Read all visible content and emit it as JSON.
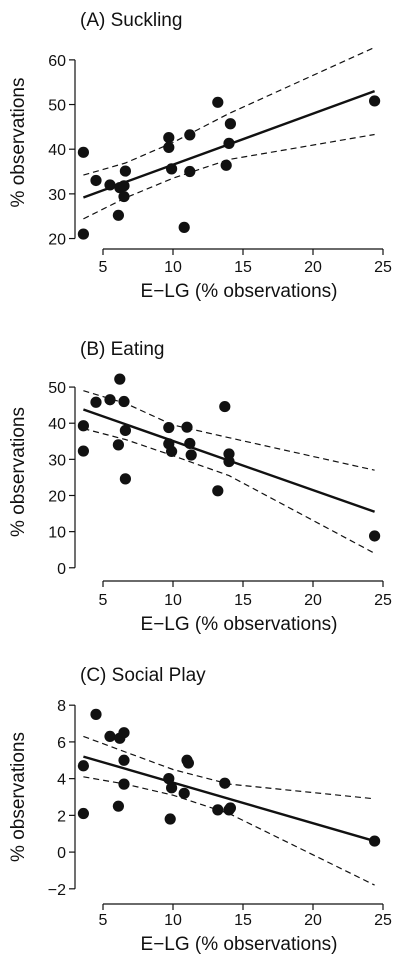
{
  "chart_data": [
    {
      "type": "scatter",
      "title": "(A) Suckling",
      "xlabel": "E−LG (% observations)",
      "ylabel": "% observations",
      "xlim": [
        3,
        25
      ],
      "ylim": [
        19,
        64
      ],
      "xticks": [
        5,
        10,
        15,
        20,
        25
      ],
      "yticks": [
        20,
        30,
        40,
        50,
        60
      ],
      "points": [
        {
          "x": 3.6,
          "y": 39.3
        },
        {
          "x": 3.6,
          "y": 21.0
        },
        {
          "x": 4.5,
          "y": 33.0
        },
        {
          "x": 5.5,
          "y": 32.0
        },
        {
          "x": 6.1,
          "y": 25.2
        },
        {
          "x": 6.2,
          "y": 31.4
        },
        {
          "x": 6.5,
          "y": 29.4
        },
        {
          "x": 6.5,
          "y": 31.8
        },
        {
          "x": 6.6,
          "y": 35.1
        },
        {
          "x": 9.7,
          "y": 42.6
        },
        {
          "x": 9.7,
          "y": 40.4
        },
        {
          "x": 9.9,
          "y": 35.6
        },
        {
          "x": 10.8,
          "y": 22.5
        },
        {
          "x": 11.2,
          "y": 43.2
        },
        {
          "x": 11.2,
          "y": 35.0
        },
        {
          "x": 13.2,
          "y": 50.5
        },
        {
          "x": 13.8,
          "y": 36.4
        },
        {
          "x": 14.0,
          "y": 41.3
        },
        {
          "x": 14.1,
          "y": 45.7
        },
        {
          "x": 24.4,
          "y": 50.8
        }
      ],
      "fit": {
        "x": [
          3.6,
          24.4
        ],
        "y": [
          29.2,
          53.0
        ]
      },
      "ci_upper": {
        "x": [
          3.6,
          6.6,
          10.0,
          14.0,
          24.4
        ],
        "y": [
          34.2,
          36.9,
          41.5,
          48.0,
          62.8
        ]
      },
      "ci_lower": {
        "x": [
          3.6,
          6.6,
          10.0,
          14.0,
          24.4
        ],
        "y": [
          24.4,
          29.1,
          33.5,
          37.7,
          43.3
        ]
      }
    },
    {
      "type": "scatter",
      "title": "(B) Eating",
      "xlabel": "E−LG (% observations)",
      "ylabel": "% observations",
      "xlim": [
        3,
        25
      ],
      "ylim": [
        -2,
        55
      ],
      "xticks": [
        5,
        10,
        15,
        20,
        25
      ],
      "yticks": [
        0,
        10,
        20,
        30,
        40,
        50
      ],
      "points": [
        {
          "x": 3.6,
          "y": 39.3
        },
        {
          "x": 3.6,
          "y": 32.3
        },
        {
          "x": 4.5,
          "y": 45.8
        },
        {
          "x": 5.5,
          "y": 46.5
        },
        {
          "x": 6.1,
          "y": 34.0
        },
        {
          "x": 6.2,
          "y": 52.2
        },
        {
          "x": 6.5,
          "y": 46.0
        },
        {
          "x": 6.6,
          "y": 38.0
        },
        {
          "x": 6.6,
          "y": 24.6
        },
        {
          "x": 9.7,
          "y": 38.8
        },
        {
          "x": 9.7,
          "y": 34.3
        },
        {
          "x": 9.9,
          "y": 32.2
        },
        {
          "x": 11.0,
          "y": 38.9
        },
        {
          "x": 11.2,
          "y": 34.4
        },
        {
          "x": 11.3,
          "y": 31.2
        },
        {
          "x": 13.2,
          "y": 21.3
        },
        {
          "x": 13.7,
          "y": 44.6
        },
        {
          "x": 14.0,
          "y": 31.5
        },
        {
          "x": 14.0,
          "y": 29.4
        },
        {
          "x": 24.4,
          "y": 8.8
        }
      ],
      "fit": {
        "x": [
          3.6,
          24.4
        ],
        "y": [
          43.8,
          15.5
        ]
      },
      "ci_upper": {
        "x": [
          3.6,
          6.6,
          10.0,
          14.0,
          24.4
        ],
        "y": [
          49.0,
          45.5,
          39.5,
          36.0,
          27.0
        ]
      },
      "ci_lower": {
        "x": [
          3.6,
          6.6,
          10.0,
          14.0,
          24.4
        ],
        "y": [
          38.5,
          35.5,
          31.0,
          25.5,
          4.0
        ]
      }
    },
    {
      "type": "scatter",
      "title": "(C) Social Play",
      "xlabel": "E−LG (% observations)",
      "ylabel": "% observations",
      "xlim": [
        3,
        25
      ],
      "ylim": [
        -2.5,
        8.5
      ],
      "xticks": [
        5,
        10,
        15,
        20,
        25
      ],
      "yticks": [
        -2,
        0,
        2,
        4,
        6,
        8
      ],
      "points": [
        {
          "x": 3.6,
          "y": 4.7
        },
        {
          "x": 3.6,
          "y": 2.1
        },
        {
          "x": 4.5,
          "y": 7.5
        },
        {
          "x": 5.5,
          "y": 6.3
        },
        {
          "x": 6.1,
          "y": 2.5
        },
        {
          "x": 6.2,
          "y": 6.2
        },
        {
          "x": 6.5,
          "y": 6.5
        },
        {
          "x": 6.5,
          "y": 5.0
        },
        {
          "x": 6.5,
          "y": 3.7
        },
        {
          "x": 9.7,
          "y": 4.0
        },
        {
          "x": 9.8,
          "y": 1.8
        },
        {
          "x": 9.9,
          "y": 3.5
        },
        {
          "x": 10.8,
          "y": 3.2
        },
        {
          "x": 11.0,
          "y": 5.0
        },
        {
          "x": 11.1,
          "y": 4.85
        },
        {
          "x": 13.2,
          "y": 2.3
        },
        {
          "x": 13.7,
          "y": 3.75
        },
        {
          "x": 14.0,
          "y": 2.3
        },
        {
          "x": 14.1,
          "y": 2.4
        },
        {
          "x": 24.4,
          "y": 0.6
        }
      ],
      "fit": {
        "x": [
          3.6,
          24.4
        ],
        "y": [
          5.2,
          0.6
        ]
      },
      "ci_upper": {
        "x": [
          3.6,
          6.6,
          10.0,
          14.0,
          24.4
        ],
        "y": [
          6.3,
          5.45,
          4.5,
          3.7,
          2.9
        ]
      },
      "ci_lower": {
        "x": [
          3.6,
          6.6,
          10.0,
          14.0,
          24.4
        ],
        "y": [
          4.1,
          3.7,
          3.1,
          2.1,
          -1.8
        ]
      }
    }
  ]
}
